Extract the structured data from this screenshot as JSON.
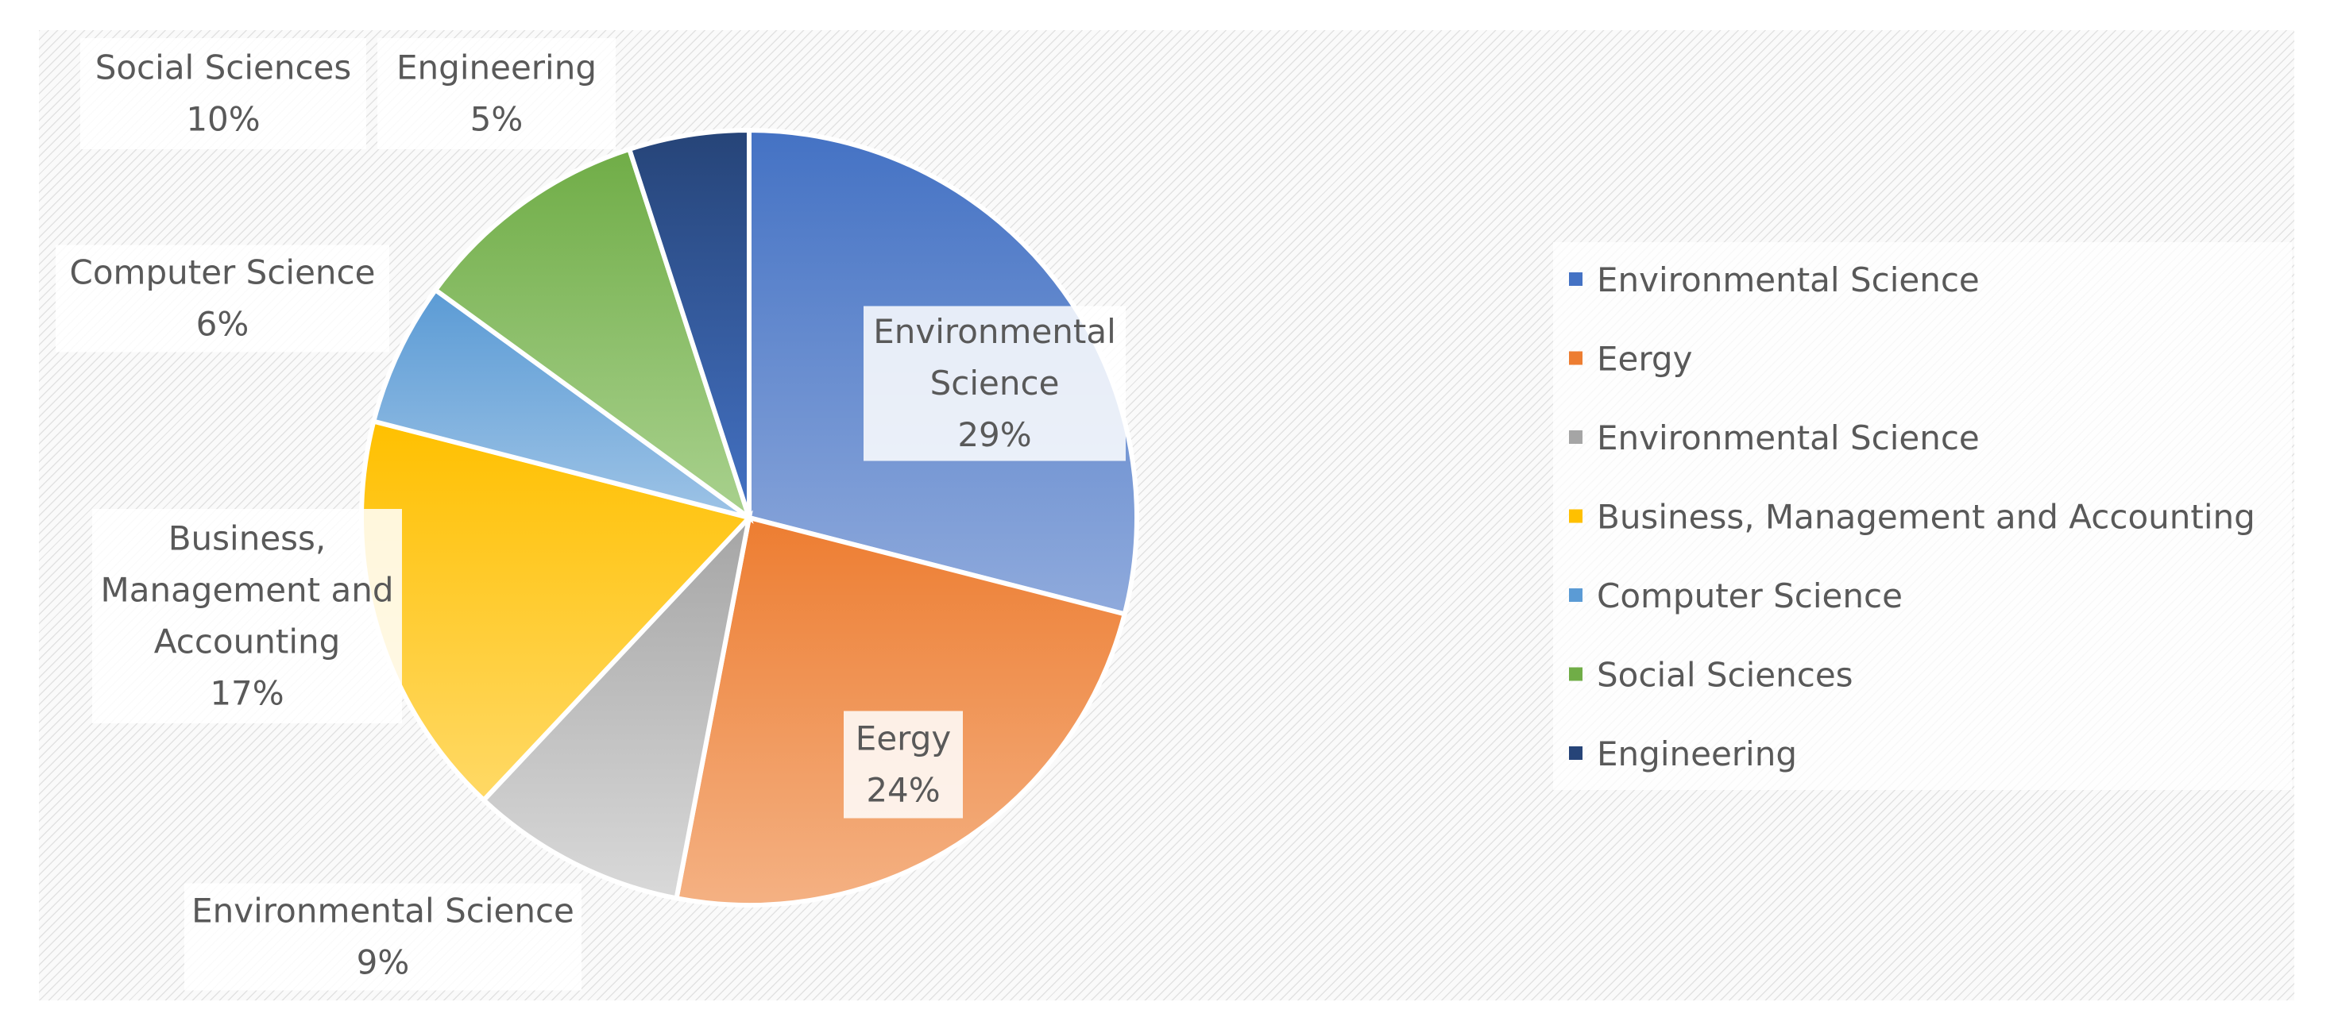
{
  "chart_data": {
    "type": "pie",
    "categories": [
      "Environmental Science",
      "Eergy",
      "Environmental Science",
      "Business, Management and Accounting",
      "Computer Science",
      "Social Sciences",
      "Engineering"
    ],
    "values": [
      29,
      24,
      9,
      17,
      6,
      10,
      5
    ],
    "value_labels": [
      "29%",
      "24%",
      "9%",
      "17%",
      "6%",
      "10%",
      "5%"
    ],
    "label_lines": [
      [
        "Environmental",
        "Science",
        "29%"
      ],
      [
        "Eergy",
        "24%"
      ],
      [
        "Environmental Science",
        "9%"
      ],
      [
        "Business,",
        "Management and",
        "Accounting",
        "17%"
      ],
      [
        "Computer Science",
        "6%"
      ],
      [
        "Social Sciences",
        "10%"
      ],
      [
        "Engineering",
        "5%"
      ]
    ],
    "colors": [
      "#4472C4",
      "#ED7D31",
      "#A5A5A5",
      "#FFC000",
      "#5B9BD5",
      "#70AD47",
      "#264478"
    ],
    "light_colors": [
      "#8FAADC",
      "#F4B183",
      "#D9D9D9",
      "#FFD966",
      "#9DC3E6",
      "#A9D18E",
      "#4472C4"
    ],
    "legend_position": "right",
    "title": ""
  }
}
